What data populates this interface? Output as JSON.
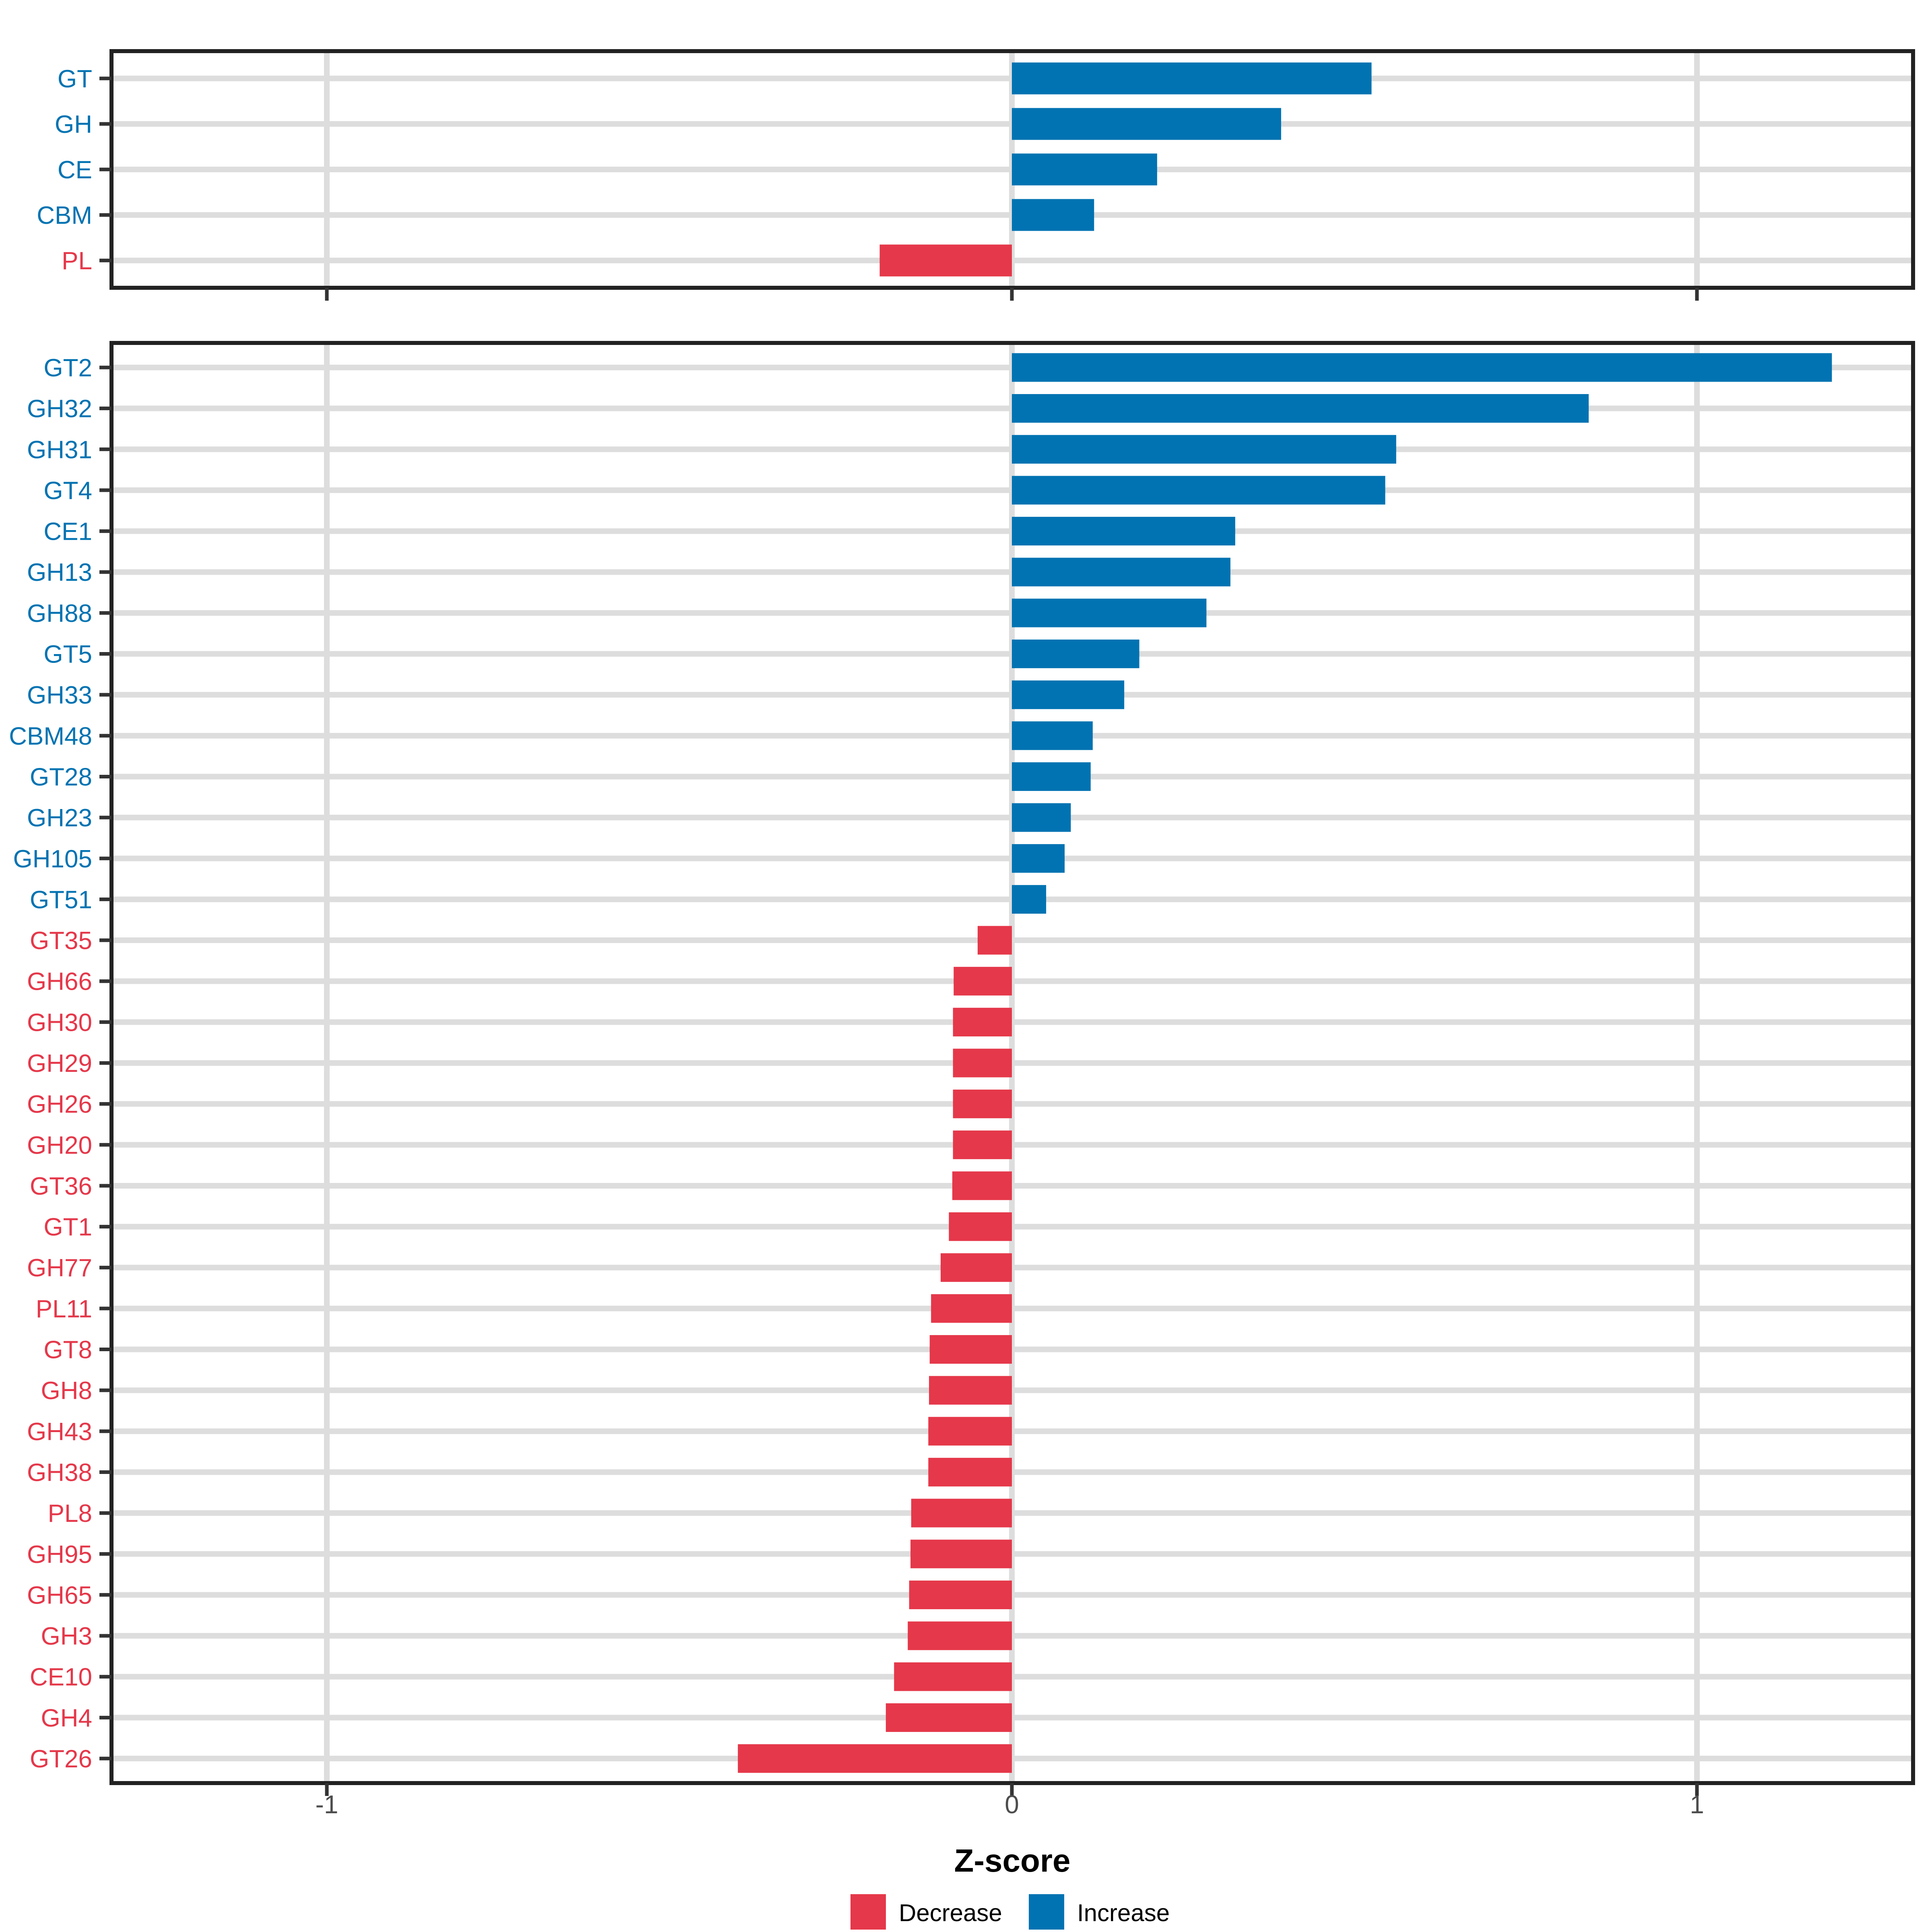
{
  "axis": {
    "label": "Z-score",
    "ticks": [
      "-1",
      "0",
      "1"
    ],
    "tick_values": [
      -1,
      0,
      1
    ]
  },
  "legend": {
    "items": [
      {
        "label": "Decrease",
        "color": "#E5384A"
      },
      {
        "label": "Increase",
        "color": "#0173B2"
      }
    ]
  },
  "colors": {
    "increase": "#0173B2",
    "decrease": "#E5384A",
    "grid": "#DDDDDD",
    "panel_border": "#222222",
    "tick_mark": "#333333",
    "tick_label": "#4D4D4D",
    "background": "#FFFFFF"
  },
  "chart_data": [
    {
      "type": "bar",
      "orientation": "horizontal",
      "panel": "cazyme-classes",
      "title": "",
      "xlabel": "Z-score",
      "ylabel": "",
      "xlim": [
        -1.316,
        1.316
      ],
      "grid": true,
      "legend_position": "bottom",
      "categories": [
        "GT",
        "GH",
        "CE",
        "CBM",
        "PL"
      ],
      "values": [
        0.525,
        0.393,
        0.212,
        0.12,
        -0.193
      ],
      "directions": [
        "Increase",
        "Increase",
        "Increase",
        "Increase",
        "Decrease"
      ]
    },
    {
      "type": "bar",
      "orientation": "horizontal",
      "panel": "cazyme-families",
      "title": "",
      "xlabel": "Z-score",
      "ylabel": "",
      "xlim": [
        -1.316,
        1.316
      ],
      "grid": true,
      "legend_position": "bottom",
      "categories": [
        "GT2",
        "GH32",
        "GH31",
        "GT4",
        "CE1",
        "GH13",
        "GH88",
        "GT5",
        "GH33",
        "CBM48",
        "GT28",
        "GH23",
        "GH105",
        "GT51",
        "GT35",
        "GH66",
        "GH30",
        "GH29",
        "GH26",
        "GH20",
        "GT36",
        "GT1",
        "GH77",
        "PL11",
        "GT8",
        "GH8",
        "GH43",
        "GH38",
        "PL8",
        "GH95",
        "GH65",
        "GH3",
        "CE10",
        "GH4",
        "GT26"
      ],
      "values": [
        1.197,
        0.842,
        0.561,
        0.545,
        0.326,
        0.319,
        0.284,
        0.186,
        0.164,
        0.118,
        0.115,
        0.086,
        0.077,
        0.05,
        -0.05,
        -0.085,
        -0.086,
        -0.086,
        -0.086,
        -0.086,
        -0.087,
        -0.092,
        -0.104,
        -0.118,
        -0.12,
        -0.121,
        -0.122,
        -0.122,
        -0.147,
        -0.148,
        -0.15,
        -0.152,
        -0.172,
        -0.184,
        -0.4
      ],
      "directions": [
        "Increase",
        "Increase",
        "Increase",
        "Increase",
        "Increase",
        "Increase",
        "Increase",
        "Increase",
        "Increase",
        "Increase",
        "Increase",
        "Increase",
        "Increase",
        "Increase",
        "Decrease",
        "Decrease",
        "Decrease",
        "Decrease",
        "Decrease",
        "Decrease",
        "Decrease",
        "Decrease",
        "Decrease",
        "Decrease",
        "Decrease",
        "Decrease",
        "Decrease",
        "Decrease",
        "Decrease",
        "Decrease",
        "Decrease",
        "Decrease",
        "Decrease",
        "Decrease",
        "Decrease"
      ]
    }
  ]
}
